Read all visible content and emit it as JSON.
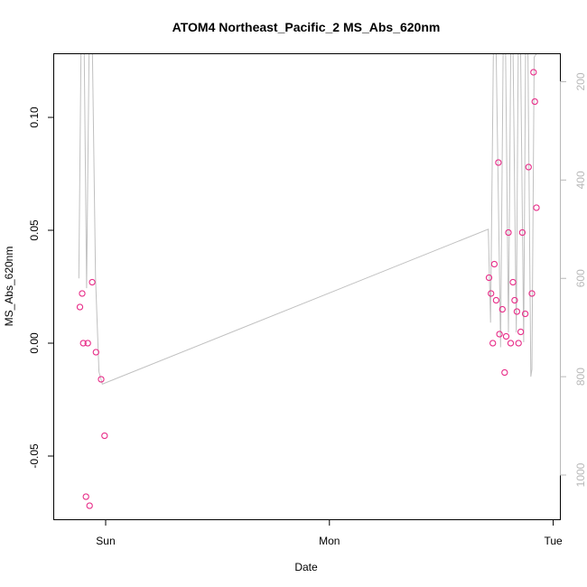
{
  "chart_data": {
    "type": "scatter",
    "title": "ATOM4 Northeast_Pacific_2 MS_Abs_620nm",
    "xlabel": "Date",
    "ylabel": "MS_Abs_620nm",
    "x_units": "days",
    "xlim": [
      -0.23,
      2.03
    ],
    "ylim": [
      -0.078,
      0.128
    ],
    "x_ticks": [
      {
        "value": 0,
        "label": "Sun"
      },
      {
        "value": 1,
        "label": "Mon"
      },
      {
        "value": 2,
        "label": "Tue"
      }
    ],
    "y_ticks": [
      {
        "value": -0.05,
        "label": "-0.05"
      },
      {
        "value": 0.0,
        "label": "0.00"
      },
      {
        "value": 0.05,
        "label": "0.05"
      },
      {
        "value": 0.1,
        "label": "0.10"
      }
    ],
    "right_axis": {
      "inverted": true,
      "lim": [
        144,
        1090
      ],
      "ticks": [
        {
          "value": 200,
          "label": "200"
        },
        {
          "value": 400,
          "label": "400"
        },
        {
          "value": 600,
          "label": "600"
        },
        {
          "value": 800,
          "label": "800"
        },
        {
          "value": 1000,
          "label": "1000"
        }
      ],
      "color": "#b8b8b8"
    },
    "series": [
      {
        "kind": "points",
        "color": "#e8308a",
        "points": [
          {
            "x": -0.115,
            "y": 0.016
          },
          {
            "x": -0.105,
            "y": 0.022
          },
          {
            "x": -0.1,
            "y": 0.0
          },
          {
            "x": -0.088,
            "y": -0.068
          },
          {
            "x": -0.08,
            "y": 0.0
          },
          {
            "x": -0.072,
            "y": -0.072
          },
          {
            "x": -0.06,
            "y": 0.027
          },
          {
            "x": -0.043,
            "y": -0.004
          },
          {
            "x": -0.02,
            "y": -0.016
          },
          {
            "x": -0.005,
            "y": -0.041
          },
          {
            "x": 1.713,
            "y": 0.029
          },
          {
            "x": 1.722,
            "y": 0.022
          },
          {
            "x": 1.73,
            "y": 0.0
          },
          {
            "x": 1.737,
            "y": 0.035
          },
          {
            "x": 1.745,
            "y": 0.019
          },
          {
            "x": 1.755,
            "y": 0.08
          },
          {
            "x": 1.76,
            "y": 0.004
          },
          {
            "x": 1.773,
            "y": 0.015
          },
          {
            "x": 1.783,
            "y": -0.013
          },
          {
            "x": 1.79,
            "y": 0.003
          },
          {
            "x": 1.8,
            "y": 0.049
          },
          {
            "x": 1.81,
            "y": 0.0
          },
          {
            "x": 1.82,
            "y": 0.027
          },
          {
            "x": 1.828,
            "y": 0.019
          },
          {
            "x": 1.838,
            "y": 0.014
          },
          {
            "x": 1.845,
            "y": 0.0
          },
          {
            "x": 1.855,
            "y": 0.005
          },
          {
            "x": 1.862,
            "y": 0.049
          },
          {
            "x": 1.875,
            "y": 0.013
          },
          {
            "x": 1.89,
            "y": 0.078
          },
          {
            "x": 1.905,
            "y": 0.022
          },
          {
            "x": 1.912,
            "y": 0.12
          },
          {
            "x": 1.918,
            "y": 0.107
          },
          {
            "x": 1.925,
            "y": 0.06
          }
        ]
      },
      {
        "kind": "line",
        "axis": "right",
        "color": "#c0c0c0",
        "points": [
          {
            "x": -0.12,
            "y": 600
          },
          {
            "x": -0.108,
            "y": 40
          },
          {
            "x": -0.098,
            "y": 40
          },
          {
            "x": -0.085,
            "y": 620
          },
          {
            "x": -0.072,
            "y": 40
          },
          {
            "x": -0.062,
            "y": 40
          },
          {
            "x": -0.045,
            "y": 600
          },
          {
            "x": -0.03,
            "y": 790
          },
          {
            "x": -0.015,
            "y": 815
          },
          {
            "x": 1.71,
            "y": 500
          },
          {
            "x": 1.72,
            "y": 690
          },
          {
            "x": 1.735,
            "y": 40
          },
          {
            "x": 1.742,
            "y": 40
          },
          {
            "x": 1.765,
            "y": 740
          },
          {
            "x": 1.778,
            "y": 40
          },
          {
            "x": 1.785,
            "y": 40
          },
          {
            "x": 1.8,
            "y": 710
          },
          {
            "x": 1.812,
            "y": 40
          },
          {
            "x": 1.818,
            "y": 40
          },
          {
            "x": 1.835,
            "y": 710
          },
          {
            "x": 1.845,
            "y": 40
          },
          {
            "x": 1.852,
            "y": 40
          },
          {
            "x": 1.868,
            "y": 730
          },
          {
            "x": 1.878,
            "y": 40
          },
          {
            "x": 1.885,
            "y": 40
          },
          {
            "x": 1.9,
            "y": 800
          },
          {
            "x": 1.905,
            "y": 785
          },
          {
            "x": 1.915,
            "y": 150
          },
          {
            "x": 1.93,
            "y": 140
          }
        ]
      }
    ]
  }
}
